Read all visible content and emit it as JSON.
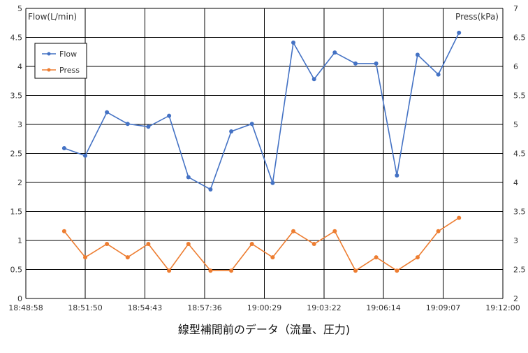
{
  "caption": "線型補間前のデータ（流量、圧力)",
  "chart_data": {
    "type": "line",
    "title": "",
    "left_axis_label": "Flow(L/min)",
    "right_axis_label": "Press(kPa)",
    "x_ticks": [
      "18:48:58",
      "18:51:50",
      "18:54:43",
      "18:57:36",
      "19:00:29",
      "19:03:22",
      "19:06:14",
      "19:09:07",
      "19:12:00"
    ],
    "x_range": [
      "18:48:58",
      "19:12:00"
    ],
    "y_left": {
      "min": 0,
      "max": 5,
      "ticks": [
        "0",
        "0.5",
        "1",
        "1.5",
        "2",
        "2.5",
        "3",
        "3.5",
        "4",
        "4.5",
        "5"
      ]
    },
    "y_right": {
      "min": 2,
      "max": 7,
      "ticks": [
        "2",
        "2.5",
        "3",
        "3.5",
        "4",
        "4.5",
        "5",
        "5.5",
        "6",
        "6.5",
        "7"
      ]
    },
    "grid": true,
    "legend_position": "top-left",
    "x": [
      "18:50:49",
      "18:51:50",
      "18:52:53",
      "18:53:53",
      "18:54:53",
      "18:55:53",
      "18:56:49",
      "18:57:53",
      "18:58:53",
      "18:59:53",
      "19:00:53",
      "19:01:53",
      "19:02:53",
      "19:03:53",
      "19:04:53",
      "19:05:53",
      "19:06:53",
      "19:07:53",
      "19:08:53",
      "19:09:53"
    ],
    "series": [
      {
        "name": "Flow",
        "axis": "left",
        "color": "#4472C4",
        "values": [
          2.59,
          2.46,
          3.21,
          3.01,
          2.96,
          3.15,
          2.09,
          1.88,
          2.88,
          3.01,
          1.99,
          4.41,
          3.78,
          4.24,
          4.05,
          4.05,
          2.12,
          4.2,
          3.86,
          4.58
        ]
      },
      {
        "name": "Press",
        "axis": "right",
        "color": "#ED7D31",
        "values": [
          3.16,
          2.71,
          2.94,
          2.71,
          2.94,
          2.48,
          2.94,
          2.48,
          2.48,
          2.94,
          2.71,
          3.16,
          2.94,
          3.16,
          2.48,
          2.71,
          2.48,
          2.71,
          3.16,
          3.39
        ]
      }
    ]
  }
}
